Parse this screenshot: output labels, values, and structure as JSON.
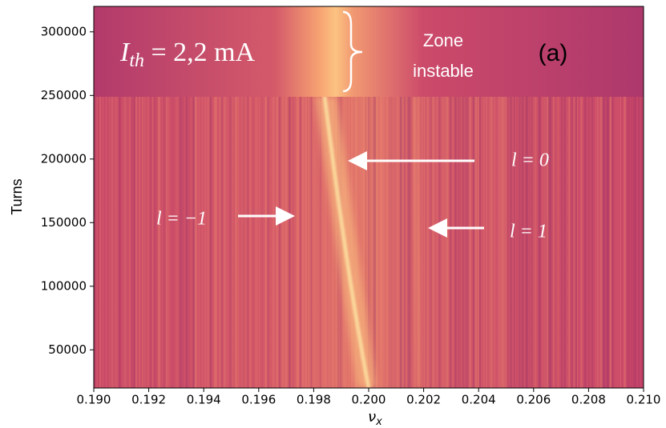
{
  "chart_data": {
    "type": "heatmap",
    "xlabel": {
      "symbol": "ν",
      "subscript": "x"
    },
    "ylabel": "Turns",
    "xlim": [
      0.19,
      0.21
    ],
    "xticks": [
      {
        "value": 0.19,
        "label": "0.190"
      },
      {
        "value": 0.192,
        "label": "0.192"
      },
      {
        "value": 0.194,
        "label": "0.194"
      },
      {
        "value": 0.196,
        "label": "0.196"
      },
      {
        "value": 0.198,
        "label": "0.198"
      },
      {
        "value": 0.2,
        "label": "0.200"
      },
      {
        "value": 0.202,
        "label": "0.202"
      },
      {
        "value": 0.204,
        "label": "0.204"
      },
      {
        "value": 0.206,
        "label": "0.206"
      },
      {
        "value": 0.208,
        "label": "0.208"
      },
      {
        "value": 0.21,
        "label": "0.210"
      }
    ],
    "ylim": [
      20000,
      320000
    ],
    "yticks": [
      50000,
      100000,
      150000,
      200000,
      250000,
      300000
    ],
    "threshold_label": {
      "symbol": "I",
      "subscript": "th",
      "text": " = 2,2 mA"
    },
    "zone_label": [
      "Zone",
      "instable"
    ],
    "panel_label": "(a)",
    "mode_labels": [
      "l = 0",
      "l = −1",
      "l = 1"
    ]
  }
}
